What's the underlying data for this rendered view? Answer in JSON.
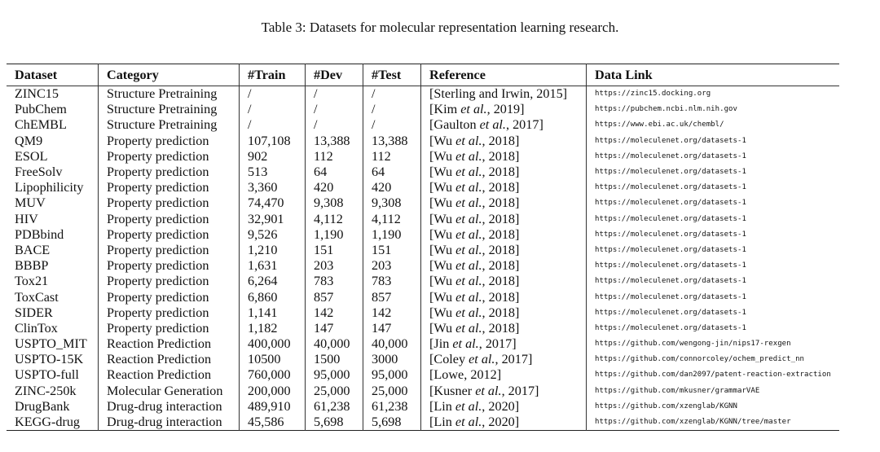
{
  "caption": "Table 3: Datasets for molecular representation learning research.",
  "table": {
    "headers": [
      "Dataset",
      "Category",
      "#Train",
      "#Dev",
      "#Test",
      "Reference",
      "Data Link"
    ],
    "rows": [
      {
        "dataset": "ZINC15",
        "category": "Structure Pretraining",
        "train": "/",
        "dev": "/",
        "test": "/",
        "ref_author": "Sterling and Irwin",
        "ref_etal": "",
        "ref_year": ", 2015",
        "link": "https://zinc15.docking.org"
      },
      {
        "dataset": "PubChem",
        "category": "Structure Pretraining",
        "train": "/",
        "dev": "/",
        "test": "/",
        "ref_author": "Kim",
        "ref_etal": "et al.",
        "ref_year": ", 2019",
        "link": "https://pubchem.ncbi.nlm.nih.gov"
      },
      {
        "dataset": "ChEMBL",
        "category": "Structure Pretraining",
        "train": "/",
        "dev": "/",
        "test": "/",
        "ref_author": "Gaulton",
        "ref_etal": "et al.",
        "ref_year": ", 2017",
        "link": "https://www.ebi.ac.uk/chembl/"
      },
      {
        "dataset": "QM9",
        "category": "Property prediction",
        "train": "107,108",
        "dev": "13,388",
        "test": "13,388",
        "ref_author": "Wu",
        "ref_etal": "et al.",
        "ref_year": ", 2018",
        "link": "https://moleculenet.org/datasets-1"
      },
      {
        "dataset": "ESOL",
        "category": "Property prediction",
        "train": "902",
        "dev": "112",
        "test": "112",
        "ref_author": "Wu",
        "ref_etal": "et al.",
        "ref_year": ", 2018",
        "link": "https://moleculenet.org/datasets-1"
      },
      {
        "dataset": "FreeSolv",
        "category": "Property prediction",
        "train": "513",
        "dev": "64",
        "test": "64",
        "ref_author": "Wu",
        "ref_etal": "et al.",
        "ref_year": ", 2018",
        "link": "https://moleculenet.org/datasets-1"
      },
      {
        "dataset": "Lipophilicity",
        "category": "Property prediction",
        "train": "3,360",
        "dev": "420",
        "test": "420",
        "ref_author": "Wu",
        "ref_etal": "et al.",
        "ref_year": ", 2018",
        "link": "https://moleculenet.org/datasets-1"
      },
      {
        "dataset": "MUV",
        "category": "Property prediction",
        "train": "74,470",
        "dev": "9,308",
        "test": "9,308",
        "ref_author": "Wu",
        "ref_etal": "et al.",
        "ref_year": ", 2018",
        "link": "https://moleculenet.org/datasets-1"
      },
      {
        "dataset": "HIV",
        "category": "Property prediction",
        "train": "32,901",
        "dev": "4,112",
        "test": "4,112",
        "ref_author": "Wu",
        "ref_etal": "et al.",
        "ref_year": ", 2018",
        "link": "https://moleculenet.org/datasets-1"
      },
      {
        "dataset": "PDBbind",
        "category": "Property prediction",
        "train": "9,526",
        "dev": "1,190",
        "test": "1,190",
        "ref_author": "Wu",
        "ref_etal": "et al.",
        "ref_year": ", 2018",
        "link": "https://moleculenet.org/datasets-1"
      },
      {
        "dataset": "BACE",
        "category": "Property prediction",
        "train": "1,210",
        "dev": "151",
        "test": "151",
        "ref_author": "Wu",
        "ref_etal": "et al.",
        "ref_year": ", 2018",
        "link": "https://moleculenet.org/datasets-1"
      },
      {
        "dataset": "BBBP",
        "category": "Property prediction",
        "train": "1,631",
        "dev": "203",
        "test": "203",
        "ref_author": "Wu",
        "ref_etal": "et al.",
        "ref_year": ", 2018",
        "link": "https://moleculenet.org/datasets-1"
      },
      {
        "dataset": "Tox21",
        "category": "Property prediction",
        "train": "6,264",
        "dev": "783",
        "test": "783",
        "ref_author": "Wu",
        "ref_etal": "et al.",
        "ref_year": ", 2018",
        "link": "https://moleculenet.org/datasets-1"
      },
      {
        "dataset": "ToxCast",
        "category": "Property prediction",
        "train": "6,860",
        "dev": "857",
        "test": "857",
        "ref_author": "Wu",
        "ref_etal": "et al.",
        "ref_year": ", 2018",
        "link": "https://moleculenet.org/datasets-1"
      },
      {
        "dataset": "SIDER",
        "category": "Property prediction",
        "train": "1,141",
        "dev": "142",
        "test": "142",
        "ref_author": "Wu",
        "ref_etal": "et al.",
        "ref_year": ", 2018",
        "link": "https://moleculenet.org/datasets-1"
      },
      {
        "dataset": "ClinTox",
        "category": "Property prediction",
        "train": "1,182",
        "dev": "147",
        "test": "147",
        "ref_author": "Wu",
        "ref_etal": "et al.",
        "ref_year": ", 2018",
        "link": "https://moleculenet.org/datasets-1"
      },
      {
        "dataset": "USPTO_MIT",
        "category": "Reaction Prediction",
        "train": "400,000",
        "dev": "40,000",
        "test": "40,000",
        "ref_author": "Jin",
        "ref_etal": "et al.",
        "ref_year": ", 2017",
        "link": "https://github.com/wengong-jin/nips17-rexgen"
      },
      {
        "dataset": "USPTO-15K",
        "category": "Reaction Prediction",
        "train": "10500",
        "dev": "1500",
        "test": "3000",
        "ref_author": "Coley",
        "ref_etal": "et al.",
        "ref_year": ", 2017",
        "link": "https://github.com/connorcoley/ochem_predict_nn"
      },
      {
        "dataset": "USPTO-full",
        "category": "Reaction Prediction",
        "train": "760,000",
        "dev": "95,000",
        "test": "95,000",
        "ref_author": "Lowe",
        "ref_etal": "",
        "ref_year": ", 2012",
        "link": "https://github.com/dan2097/patent-reaction-extraction"
      },
      {
        "dataset": "ZINC-250k",
        "category": "Molecular Generation",
        "train": "200,000",
        "dev": "25,000",
        "test": "25,000",
        "ref_author": "Kusner",
        "ref_etal": "et al.",
        "ref_year": ", 2017",
        "link": "https://github.com/mkusner/grammarVAE"
      },
      {
        "dataset": "DrugBank",
        "category": "Drug-drug interaction",
        "train": "489,910",
        "dev": "61,238",
        "test": "61,238",
        "ref_author": "Lin",
        "ref_etal": "et al.",
        "ref_year": ", 2020",
        "link": "https://github.com/xzenglab/KGNN"
      },
      {
        "dataset": "KEGG-drug",
        "category": "Drug-drug interaction",
        "train": "45,586",
        "dev": "5,698",
        "test": "5,698",
        "ref_author": "Lin",
        "ref_etal": "et al.",
        "ref_year": ", 2020",
        "link": "https://github.com/xzenglab/KGNN/tree/master"
      }
    ]
  }
}
